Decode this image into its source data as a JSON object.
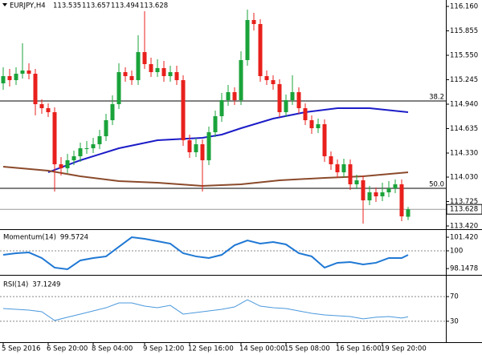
{
  "chart_data": [
    {
      "type": "candlestick",
      "title": "EURJPY,H4",
      "categories": [
        "5 Sep 2016",
        null,
        null,
        null,
        null,
        null,
        null,
        "6 Sep 20:00",
        null,
        null,
        null,
        null,
        null,
        null,
        "8 Sep 04:00",
        null,
        null,
        null,
        null,
        null,
        null,
        null,
        "9 Sep 12:00",
        null,
        null,
        null,
        null,
        null,
        null,
        "12 Sep 16:00",
        null,
        null,
        null,
        null,
        null,
        null,
        null,
        "14 Sep 00:00",
        null,
        null,
        null,
        null,
        null,
        null,
        "15 Sep 08:00",
        null,
        null,
        null,
        null,
        null,
        null,
        null,
        "16 Sep 16:00",
        null,
        null,
        null,
        null,
        null,
        null,
        "19 Sep 20:00",
        null,
        null,
        null,
        null
      ],
      "open": [
        115.2,
        115.29,
        115.24,
        115.32,
        115.36,
        115.32,
        114.94,
        114.89,
        114.84,
        114.19,
        114.14,
        114.24,
        114.29,
        114.39,
        114.39,
        114.44,
        114.54,
        114.74,
        114.94,
        115.34,
        115.29,
        115.24,
        115.59,
        115.44,
        115.34,
        115.39,
        115.29,
        115.34,
        115.24,
        114.49,
        114.34,
        114.44,
        114.24,
        114.59,
        114.79,
        114.99,
        115.09,
        114.99,
        115.49,
        115.99,
        115.94,
        115.29,
        115.24,
        115.19,
        114.84,
        114.99,
        115.09,
        114.89,
        114.74,
        114.64,
        114.69,
        114.29,
        114.19,
        114.09,
        114.19,
        113.94,
        113.99,
        113.74,
        113.84,
        113.79,
        113.84,
        113.89,
        113.94,
        113.535
      ],
      "high": [
        115.4,
        115.38,
        115.4,
        115.7,
        115.45,
        115.38,
        115.0,
        114.95,
        114.9,
        114.28,
        114.32,
        114.36,
        114.46,
        114.48,
        114.52,
        114.62,
        114.82,
        115.05,
        115.45,
        115.4,
        115.36,
        115.8,
        116.1,
        115.52,
        115.5,
        115.48,
        115.42,
        115.42,
        115.3,
        114.56,
        114.52,
        114.5,
        114.66,
        114.86,
        115.08,
        115.18,
        115.15,
        115.6,
        116.12,
        116.08,
        116.0,
        115.36,
        115.3,
        115.25,
        115.06,
        115.3,
        115.15,
        114.95,
        114.8,
        114.76,
        114.75,
        114.35,
        114.25,
        114.26,
        114.25,
        114.06,
        114.05,
        113.92,
        113.9,
        113.96,
        113.98,
        114.0,
        114.0,
        113.657
      ],
      "low": [
        115.12,
        115.16,
        115.18,
        115.26,
        115.25,
        114.8,
        114.82,
        114.78,
        113.85,
        114.05,
        114.08,
        114.18,
        114.22,
        114.32,
        114.33,
        114.38,
        114.48,
        114.68,
        114.88,
        115.22,
        115.18,
        115.18,
        115.38,
        115.28,
        115.28,
        115.22,
        115.22,
        115.18,
        114.42,
        114.27,
        114.28,
        113.85,
        114.18,
        114.53,
        114.72,
        114.92,
        114.93,
        114.93,
        115.42,
        115.86,
        115.22,
        115.18,
        115.12,
        114.78,
        114.78,
        114.93,
        114.82,
        114.68,
        114.57,
        114.58,
        114.22,
        114.12,
        114.02,
        114.03,
        113.87,
        113.88,
        113.45,
        113.68,
        113.72,
        113.73,
        113.78,
        113.83,
        113.48,
        113.494
      ],
      "close": [
        115.29,
        115.24,
        115.32,
        115.36,
        115.32,
        114.94,
        114.89,
        114.84,
        114.19,
        114.14,
        114.24,
        114.29,
        114.39,
        114.39,
        114.44,
        114.54,
        114.74,
        114.94,
        115.34,
        115.29,
        115.24,
        115.59,
        115.44,
        115.34,
        115.39,
        115.29,
        115.34,
        115.24,
        114.49,
        114.34,
        114.44,
        114.24,
        114.59,
        114.79,
        114.99,
        115.09,
        114.99,
        115.49,
        115.99,
        115.94,
        115.29,
        115.24,
        115.19,
        114.84,
        114.99,
        115.09,
        114.89,
        114.74,
        114.64,
        114.69,
        114.29,
        114.19,
        114.09,
        114.19,
        113.94,
        113.99,
        113.74,
        113.84,
        113.79,
        113.84,
        113.89,
        113.94,
        113.54,
        113.628
      ],
      "up_color": "#1aa33a",
      "down_color": "#e8201c",
      "ylim": [
        113.39,
        116.24
      ],
      "yticks": [
        {
          "value": 116.16,
          "label": "116.160"
        },
        {
          "value": 115.855,
          "label": "115.855"
        },
        {
          "value": 115.55,
          "label": "115.550"
        },
        {
          "value": 115.245,
          "label": "115.245"
        },
        {
          "value": 114.94,
          "label": "114.940"
        },
        {
          "value": 114.635,
          "label": "114.635"
        },
        {
          "value": 114.33,
          "label": "114.330"
        },
        {
          "value": 114.03,
          "label": "114.030"
        },
        {
          "value": 113.725,
          "label": "113.725"
        },
        {
          "value": 113.42,
          "label": "113.420"
        }
      ],
      "lines": [
        {
          "color": "#1c1cc8",
          "x": [
            7,
            12,
            18,
            24,
            31,
            34,
            37,
            42,
            47,
            52,
            57,
            63
          ],
          "values": [
            114.09,
            114.24,
            114.39,
            114.49,
            114.52,
            114.56,
            114.64,
            114.76,
            114.84,
            114.89,
            114.89,
            114.84
          ]
        },
        {
          "color": "#8b4a2b",
          "x": [
            0,
            7,
            12,
            18,
            24,
            31,
            37,
            43,
            50,
            56,
            63
          ],
          "values": [
            114.16,
            114.11,
            114.04,
            113.98,
            113.96,
            113.92,
            113.94,
            113.99,
            114.02,
            114.04,
            114.09
          ]
        }
      ],
      "levels": [
        {
          "label": "38.2",
          "value": 114.98
        },
        {
          "label": "50.0",
          "value": 113.89
        }
      ]
    },
    {
      "type": "line",
      "title": "Momentum(14)",
      "x": [
        0,
        2,
        4,
        6,
        8,
        10,
        12,
        14,
        16,
        18,
        20,
        22,
        24,
        26,
        28,
        30,
        32,
        34,
        36,
        38,
        40,
        42,
        44,
        46,
        48,
        50,
        52,
        54,
        56,
        58,
        60,
        62,
        63
      ],
      "series": [
        {
          "color": "#1f78d4",
          "values": [
            99.58,
            99.75,
            99.83,
            99.25,
            98.25,
            98.08,
            99.0,
            99.25,
            99.42,
            100.42,
            101.42,
            101.25,
            101.0,
            100.75,
            99.75,
            99.42,
            99.25,
            99.58,
            100.58,
            101.08,
            100.75,
            100.92,
            100.67,
            99.75,
            99.42,
            98.25,
            98.75,
            98.83,
            98.58,
            98.75,
            99.25,
            99.25,
            99.5724
          ]
        }
      ],
      "ylim": [
        97.66,
        102.09
      ],
      "yticks": [
        {
          "value": 101.42,
          "label": "101.420"
        },
        100,
        98.1478
      ],
      "reference": 100
    },
    {
      "type": "line",
      "title": "RSI(14)",
      "x": [
        0,
        2,
        4,
        6,
        8,
        10,
        12,
        14,
        16,
        18,
        20,
        22,
        24,
        26,
        28,
        30,
        32,
        34,
        36,
        38,
        40,
        42,
        44,
        46,
        48,
        50,
        52,
        54,
        56,
        58,
        60,
        62,
        63
      ],
      "series": [
        {
          "color": "#4a98dc",
          "values": [
            50.6,
            49.4,
            48,
            45.5,
            31.3,
            36.5,
            41.6,
            46.8,
            51.9,
            59.7,
            59.7,
            54.5,
            51.9,
            55.8,
            41.6,
            44.2,
            46.8,
            49.4,
            53.2,
            64.8,
            54.5,
            51.9,
            50.6,
            46.8,
            42.9,
            40.3,
            39,
            37.7,
            33.9,
            36.5,
            37.7,
            35.2,
            37.1249
          ]
        }
      ],
      "ylim": [
        0,
        100
      ],
      "yticks": [
        70,
        30
      ],
      "grid": true
    }
  ]
}
